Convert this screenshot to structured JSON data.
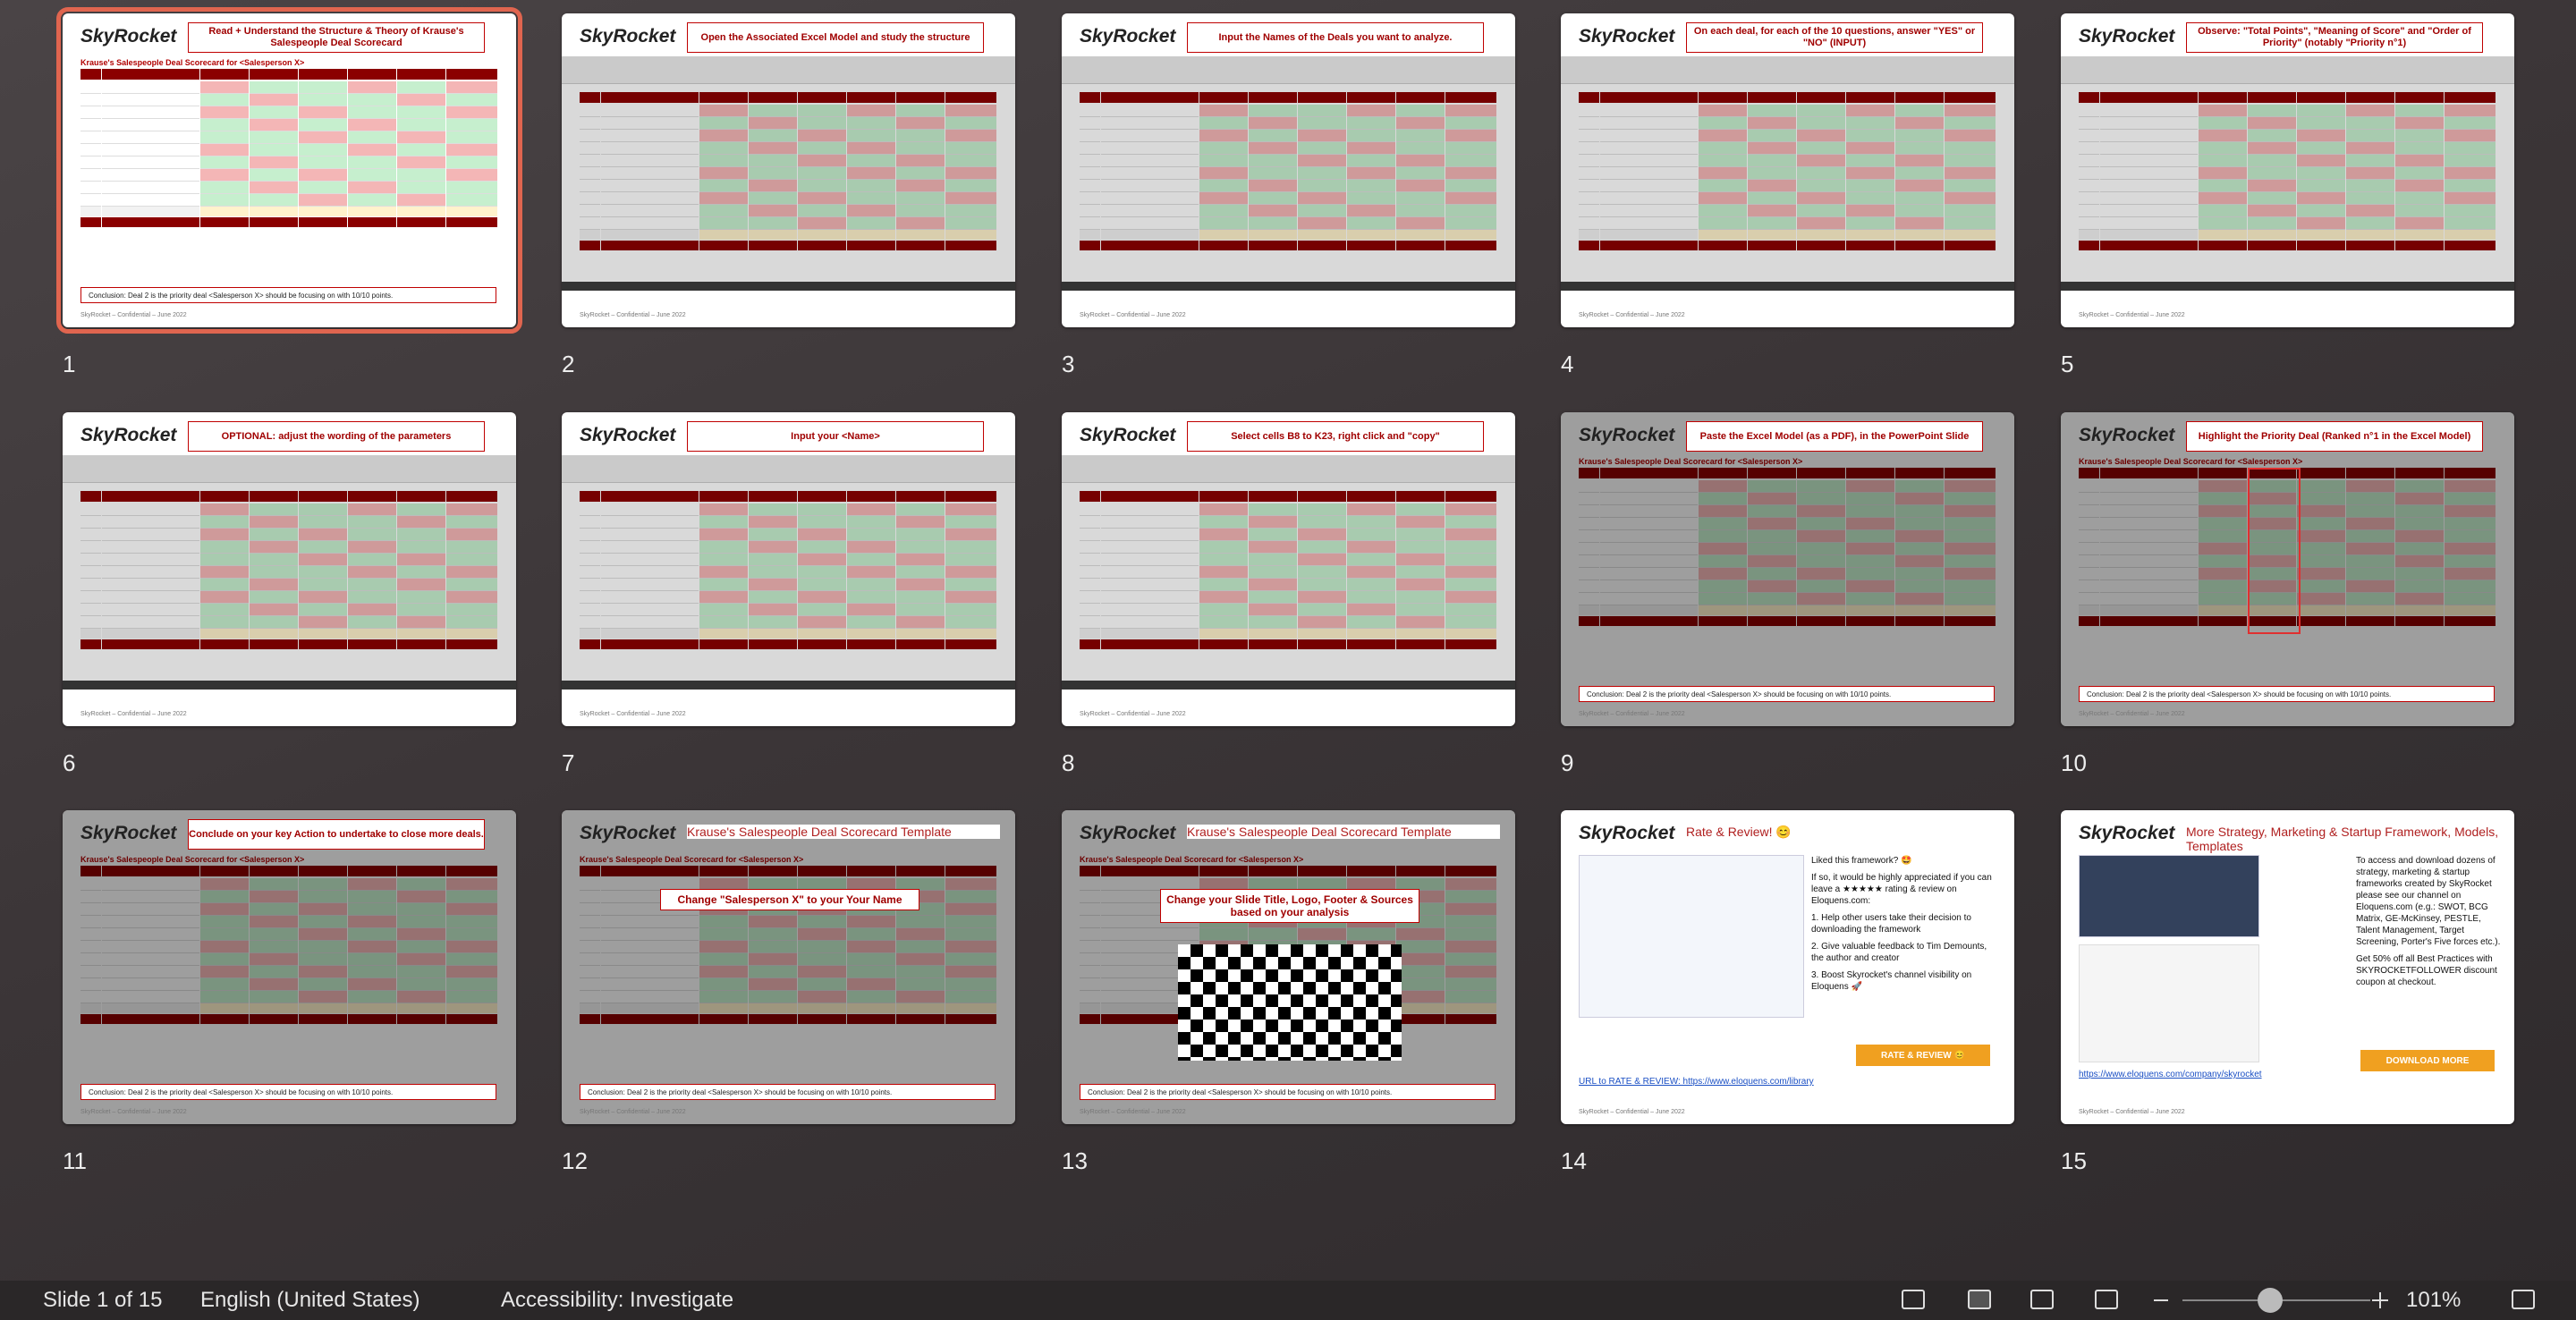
{
  "logo": "SkyRocket",
  "footer": "SkyRocket – Confidential – June 2022",
  "table_title": "Krause's Salespeople Deal Scorecard for <Salesperson X>",
  "conclusion": "Conclusion: Deal 2 is the priority deal <Salesperson X> should be focusing on with 10/10 points.",
  "slides": [
    {
      "number": "1",
      "heading": "Read + Understand the Structure & Theory of Krause's Salespeople Deal Scorecard"
    },
    {
      "number": "2",
      "heading": "Open the Associated Excel Model and study the structure"
    },
    {
      "number": "3",
      "heading": "Input the Names of the Deals you want to analyze."
    },
    {
      "number": "4",
      "heading": "On each deal, for each of the 10 questions, answer \"YES\" or \"NO\" (INPUT)"
    },
    {
      "number": "5",
      "heading": "Observe: \"Total Points\", \"Meaning of Score\" and \"Order of Priority\" (notably \"Priority n°1)"
    },
    {
      "number": "6",
      "heading": "OPTIONAL: adjust the wording of the parameters"
    },
    {
      "number": "7",
      "heading": "Input your <Name>"
    },
    {
      "number": "8",
      "heading": "Select cells B8 to K23, right click and \"copy\""
    },
    {
      "number": "9",
      "heading": "Paste the Excel Model (as a PDF), in the PowerPoint Slide"
    },
    {
      "number": "10",
      "heading": "Highlight the Priority Deal (Ranked n°1 in the Excel Model)"
    },
    {
      "number": "11",
      "heading": "Conclude on your key Action to undertake to close more deals."
    },
    {
      "number": "12",
      "title": "Krause's Salespeople Deal Scorecard Template",
      "callout": "Change \"Salesperson X\" to your Your Name"
    },
    {
      "number": "13",
      "title": "Krause's Salespeople Deal Scorecard Template",
      "callout": "Change your Slide Title, Logo, Footer & Sources based on your analysis"
    },
    {
      "number": "14",
      "title": "Rate & Review! 😊",
      "body": [
        "Liked this framework? 🤩",
        "If so, it would be highly appreciated if you can leave a ★★★★★ rating & review on Eloquens.com:",
        "1. Help other users take their decision to downloading the framework",
        "2. Give valuable feedback to Tim Demounts, the author and creator",
        "3. Boost Skyrocket's channel visibility on Eloquens 🚀"
      ],
      "button": "RATE & REVIEW 😊",
      "link": "URL to RATE & REVIEW: https://www.eloquens.com/library"
    },
    {
      "number": "15",
      "title": "More Strategy, Marketing & Startup Framework, Models, Templates",
      "body": [
        "To access and download dozens of strategy, marketing & startup frameworks created by SkyRocket please see our channel on Eloquens.com (e.g.: SWOT, BCG Matrix, GE-McKinsey, PESTLE, Talent Management, Target Screening, Porter's Five forces etc.).",
        "Get 50% off all Best Practices with SKYROCKETFOLLOWER discount coupon at checkout."
      ],
      "button": "DOWNLOAD MORE",
      "link": "https://www.eloquens.com/company/skyrocket"
    }
  ],
  "status": {
    "slide": "Slide 1 of 15",
    "language": "English (United States)",
    "accessibility": "Accessibility: Investigate",
    "zoom": "101%"
  }
}
